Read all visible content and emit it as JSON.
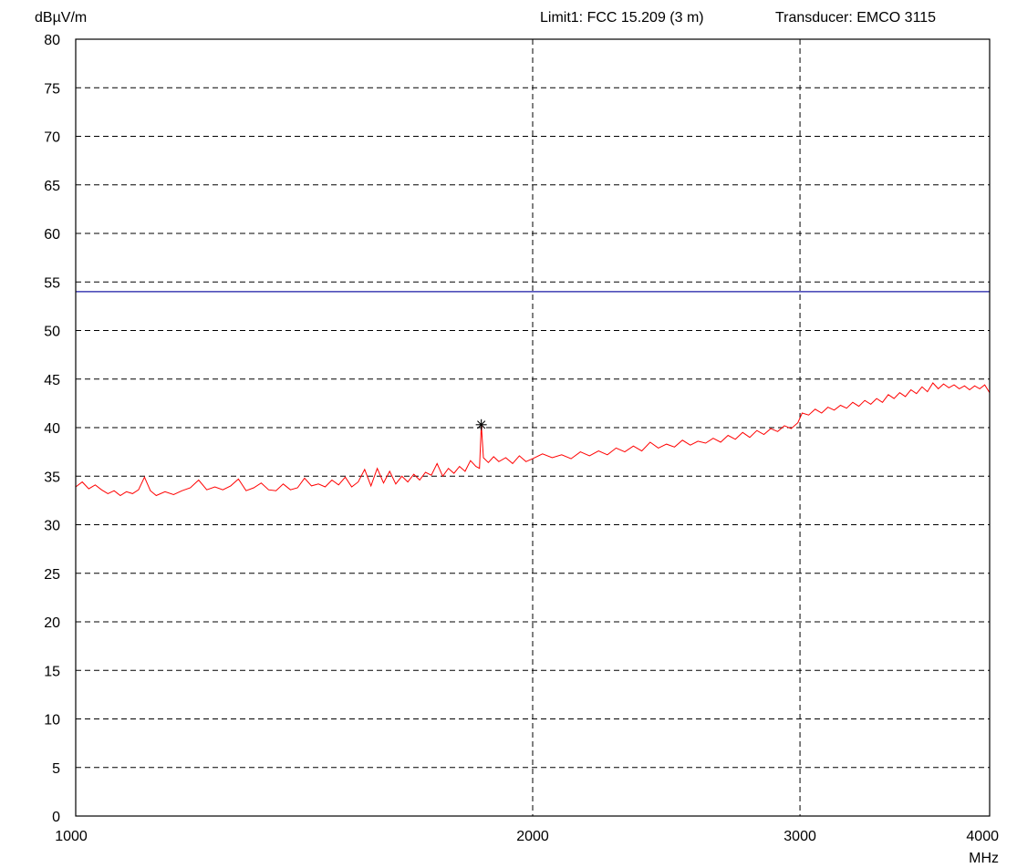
{
  "header": {
    "limit_text": "Limit1: FCC 15.209 (3 m)",
    "transducer_text": "Transducer: EMCO 3115"
  },
  "chart_data": {
    "type": "line",
    "ylabel": "dBµV/m",
    "xlabel": "MHz",
    "x_scale": "log",
    "xlim": [
      1000,
      4000
    ],
    "ylim": [
      0,
      80
    ],
    "y_ticks": [
      0,
      5,
      10,
      15,
      20,
      25,
      30,
      35,
      40,
      45,
      50,
      55,
      60,
      65,
      70,
      75,
      80
    ],
    "x_ticks": [
      1000,
      2000,
      3000,
      4000
    ],
    "grid": true,
    "limit_line": {
      "value": 54,
      "color": "#1a1aa6"
    },
    "marker": {
      "x": 1850,
      "y": 40.3,
      "symbol": "asterisk"
    },
    "series": [
      {
        "color": "#ff0000",
        "points": [
          [
            1000,
            33.9
          ],
          [
            1010,
            34.4
          ],
          [
            1020,
            33.7
          ],
          [
            1030,
            34.1
          ],
          [
            1040,
            33.6
          ],
          [
            1050,
            33.2
          ],
          [
            1060,
            33.5
          ],
          [
            1070,
            33.0
          ],
          [
            1080,
            33.4
          ],
          [
            1090,
            33.2
          ],
          [
            1100,
            33.6
          ],
          [
            1110,
            34.9
          ],
          [
            1120,
            33.5
          ],
          [
            1130,
            33.0
          ],
          [
            1145,
            33.4
          ],
          [
            1160,
            33.1
          ],
          [
            1175,
            33.5
          ],
          [
            1190,
            33.8
          ],
          [
            1205,
            34.6
          ],
          [
            1220,
            33.6
          ],
          [
            1235,
            33.9
          ],
          [
            1250,
            33.6
          ],
          [
            1265,
            34.0
          ],
          [
            1280,
            34.7
          ],
          [
            1295,
            33.5
          ],
          [
            1310,
            33.8
          ],
          [
            1325,
            34.3
          ],
          [
            1340,
            33.6
          ],
          [
            1355,
            33.5
          ],
          [
            1370,
            34.2
          ],
          [
            1385,
            33.6
          ],
          [
            1400,
            33.8
          ],
          [
            1415,
            34.8
          ],
          [
            1430,
            34.0
          ],
          [
            1445,
            34.2
          ],
          [
            1460,
            33.9
          ],
          [
            1475,
            34.6
          ],
          [
            1490,
            34.1
          ],
          [
            1505,
            34.9
          ],
          [
            1520,
            33.9
          ],
          [
            1535,
            34.4
          ],
          [
            1550,
            35.7
          ],
          [
            1565,
            34.0
          ],
          [
            1580,
            35.8
          ],
          [
            1595,
            34.3
          ],
          [
            1610,
            35.5
          ],
          [
            1625,
            34.2
          ],
          [
            1640,
            35.0
          ],
          [
            1655,
            34.4
          ],
          [
            1670,
            35.2
          ],
          [
            1685,
            34.6
          ],
          [
            1700,
            35.4
          ],
          [
            1715,
            35.1
          ],
          [
            1730,
            36.3
          ],
          [
            1745,
            35.0
          ],
          [
            1760,
            35.8
          ],
          [
            1775,
            35.3
          ],
          [
            1790,
            36.0
          ],
          [
            1805,
            35.5
          ],
          [
            1820,
            36.6
          ],
          [
            1835,
            36.0
          ],
          [
            1845,
            35.8
          ],
          [
            1850,
            40.3
          ],
          [
            1856,
            36.9
          ],
          [
            1870,
            36.4
          ],
          [
            1885,
            37.0
          ],
          [
            1900,
            36.5
          ],
          [
            1920,
            36.9
          ],
          [
            1940,
            36.3
          ],
          [
            1960,
            37.1
          ],
          [
            1980,
            36.5
          ],
          [
            2000,
            36.8
          ],
          [
            2030,
            37.3
          ],
          [
            2060,
            36.9
          ],
          [
            2090,
            37.2
          ],
          [
            2120,
            36.8
          ],
          [
            2150,
            37.5
          ],
          [
            2180,
            37.1
          ],
          [
            2210,
            37.6
          ],
          [
            2240,
            37.2
          ],
          [
            2270,
            37.9
          ],
          [
            2300,
            37.5
          ],
          [
            2330,
            38.1
          ],
          [
            2360,
            37.6
          ],
          [
            2390,
            38.5
          ],
          [
            2420,
            37.9
          ],
          [
            2450,
            38.3
          ],
          [
            2480,
            38.0
          ],
          [
            2510,
            38.7
          ],
          [
            2540,
            38.2
          ],
          [
            2570,
            38.6
          ],
          [
            2600,
            38.4
          ],
          [
            2630,
            38.9
          ],
          [
            2660,
            38.5
          ],
          [
            2690,
            39.2
          ],
          [
            2720,
            38.8
          ],
          [
            2750,
            39.5
          ],
          [
            2780,
            39.0
          ],
          [
            2810,
            39.7
          ],
          [
            2840,
            39.3
          ],
          [
            2870,
            39.9
          ],
          [
            2900,
            39.6
          ],
          [
            2930,
            40.2
          ],
          [
            2960,
            39.9
          ],
          [
            2990,
            40.5
          ],
          [
            3010,
            41.5
          ],
          [
            3040,
            41.3
          ],
          [
            3070,
            41.9
          ],
          [
            3100,
            41.5
          ],
          [
            3130,
            42.1
          ],
          [
            3160,
            41.8
          ],
          [
            3190,
            42.3
          ],
          [
            3220,
            42.0
          ],
          [
            3250,
            42.6
          ],
          [
            3280,
            42.2
          ],
          [
            3310,
            42.8
          ],
          [
            3340,
            42.4
          ],
          [
            3370,
            43.0
          ],
          [
            3400,
            42.6
          ],
          [
            3430,
            43.4
          ],
          [
            3460,
            43.0
          ],
          [
            3490,
            43.6
          ],
          [
            3520,
            43.2
          ],
          [
            3550,
            43.9
          ],
          [
            3580,
            43.5
          ],
          [
            3610,
            44.2
          ],
          [
            3640,
            43.7
          ],
          [
            3670,
            44.6
          ],
          [
            3700,
            44.0
          ],
          [
            3730,
            44.5
          ],
          [
            3760,
            44.1
          ],
          [
            3790,
            44.4
          ],
          [
            3820,
            44.0
          ],
          [
            3850,
            44.3
          ],
          [
            3880,
            43.9
          ],
          [
            3910,
            44.3
          ],
          [
            3940,
            44.0
          ],
          [
            3970,
            44.4
          ],
          [
            4000,
            43.6
          ]
        ]
      }
    ]
  }
}
